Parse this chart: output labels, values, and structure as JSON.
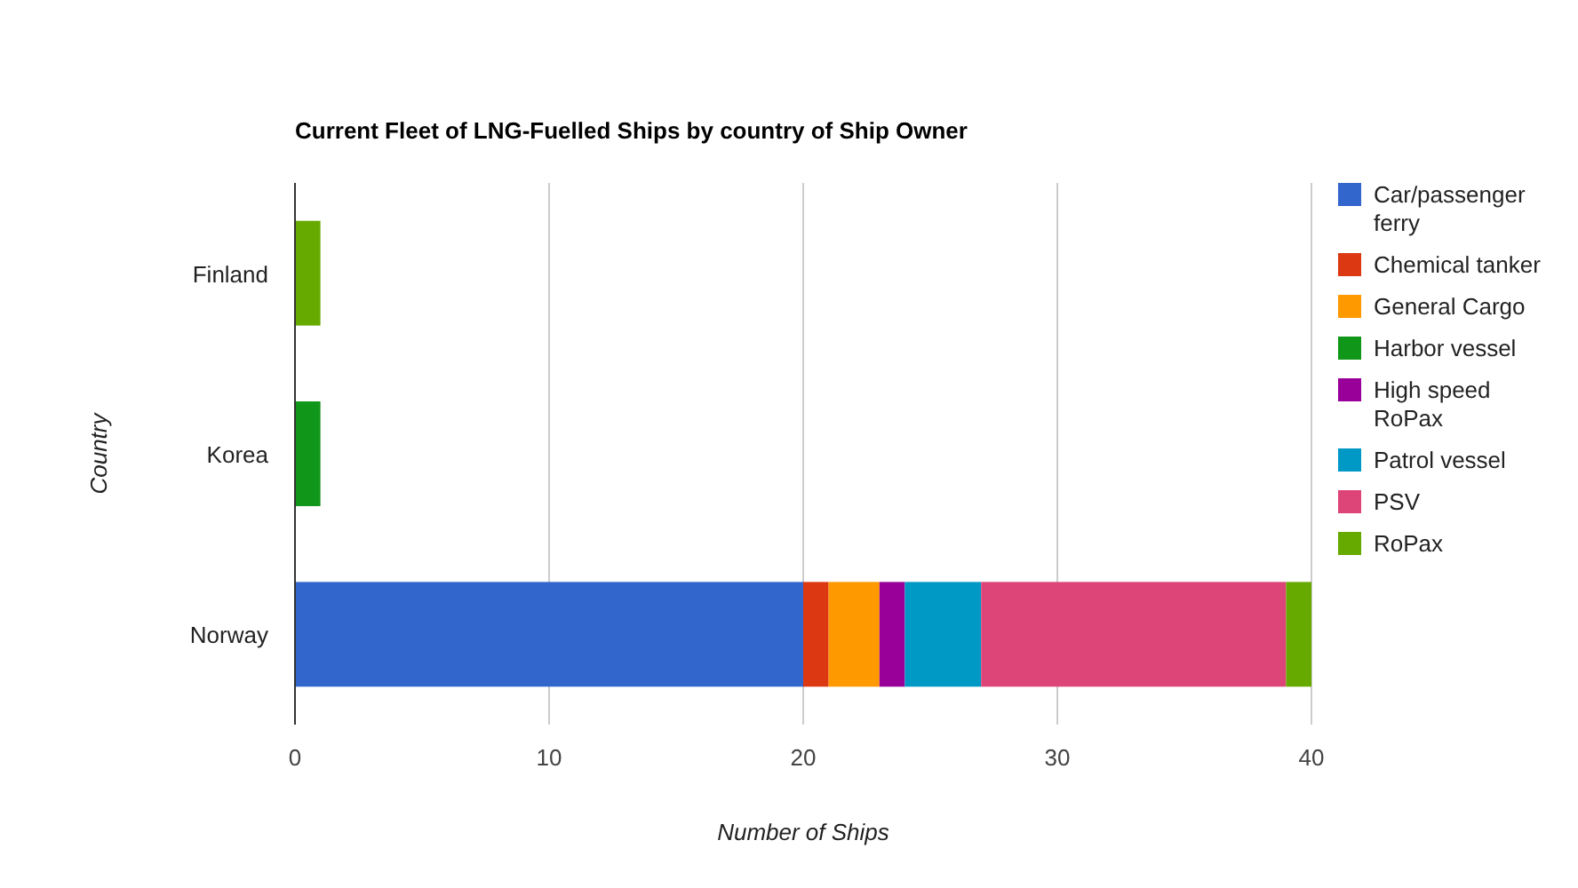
{
  "chart_data": {
    "type": "bar",
    "orientation": "horizontal",
    "stacked": true,
    "title": "Current Fleet of LNG-Fuelled Ships by country of Ship Owner",
    "xlabel": "Number of Ships",
    "ylabel": "Country",
    "categories": [
      "Finland",
      "Korea",
      "Norway"
    ],
    "xlim": [
      0,
      40
    ],
    "xticks": [
      0,
      10,
      20,
      30,
      40
    ],
    "grid": "x",
    "legend": "right",
    "series": [
      {
        "name": "Car/passenger ferry",
        "color": "#3366cc",
        "values": [
          0,
          0,
          20
        ]
      },
      {
        "name": "Chemical tanker",
        "color": "#dc3912",
        "values": [
          0,
          0,
          1
        ]
      },
      {
        "name": "General Cargo",
        "color": "#ff9900",
        "values": [
          0,
          0,
          2
        ]
      },
      {
        "name": "Harbor vessel",
        "color": "#109618",
        "values": [
          0,
          1,
          0
        ]
      },
      {
        "name": "High speed RoPax",
        "color": "#990099",
        "values": [
          0,
          0,
          1
        ]
      },
      {
        "name": "Patrol vessel",
        "color": "#0099c6",
        "values": [
          0,
          0,
          3
        ]
      },
      {
        "name": "PSV",
        "color": "#dd4477",
        "values": [
          0,
          0,
          12
        ]
      },
      {
        "name": "RoPax",
        "color": "#66aa00",
        "values": [
          1,
          0,
          1
        ]
      }
    ]
  }
}
